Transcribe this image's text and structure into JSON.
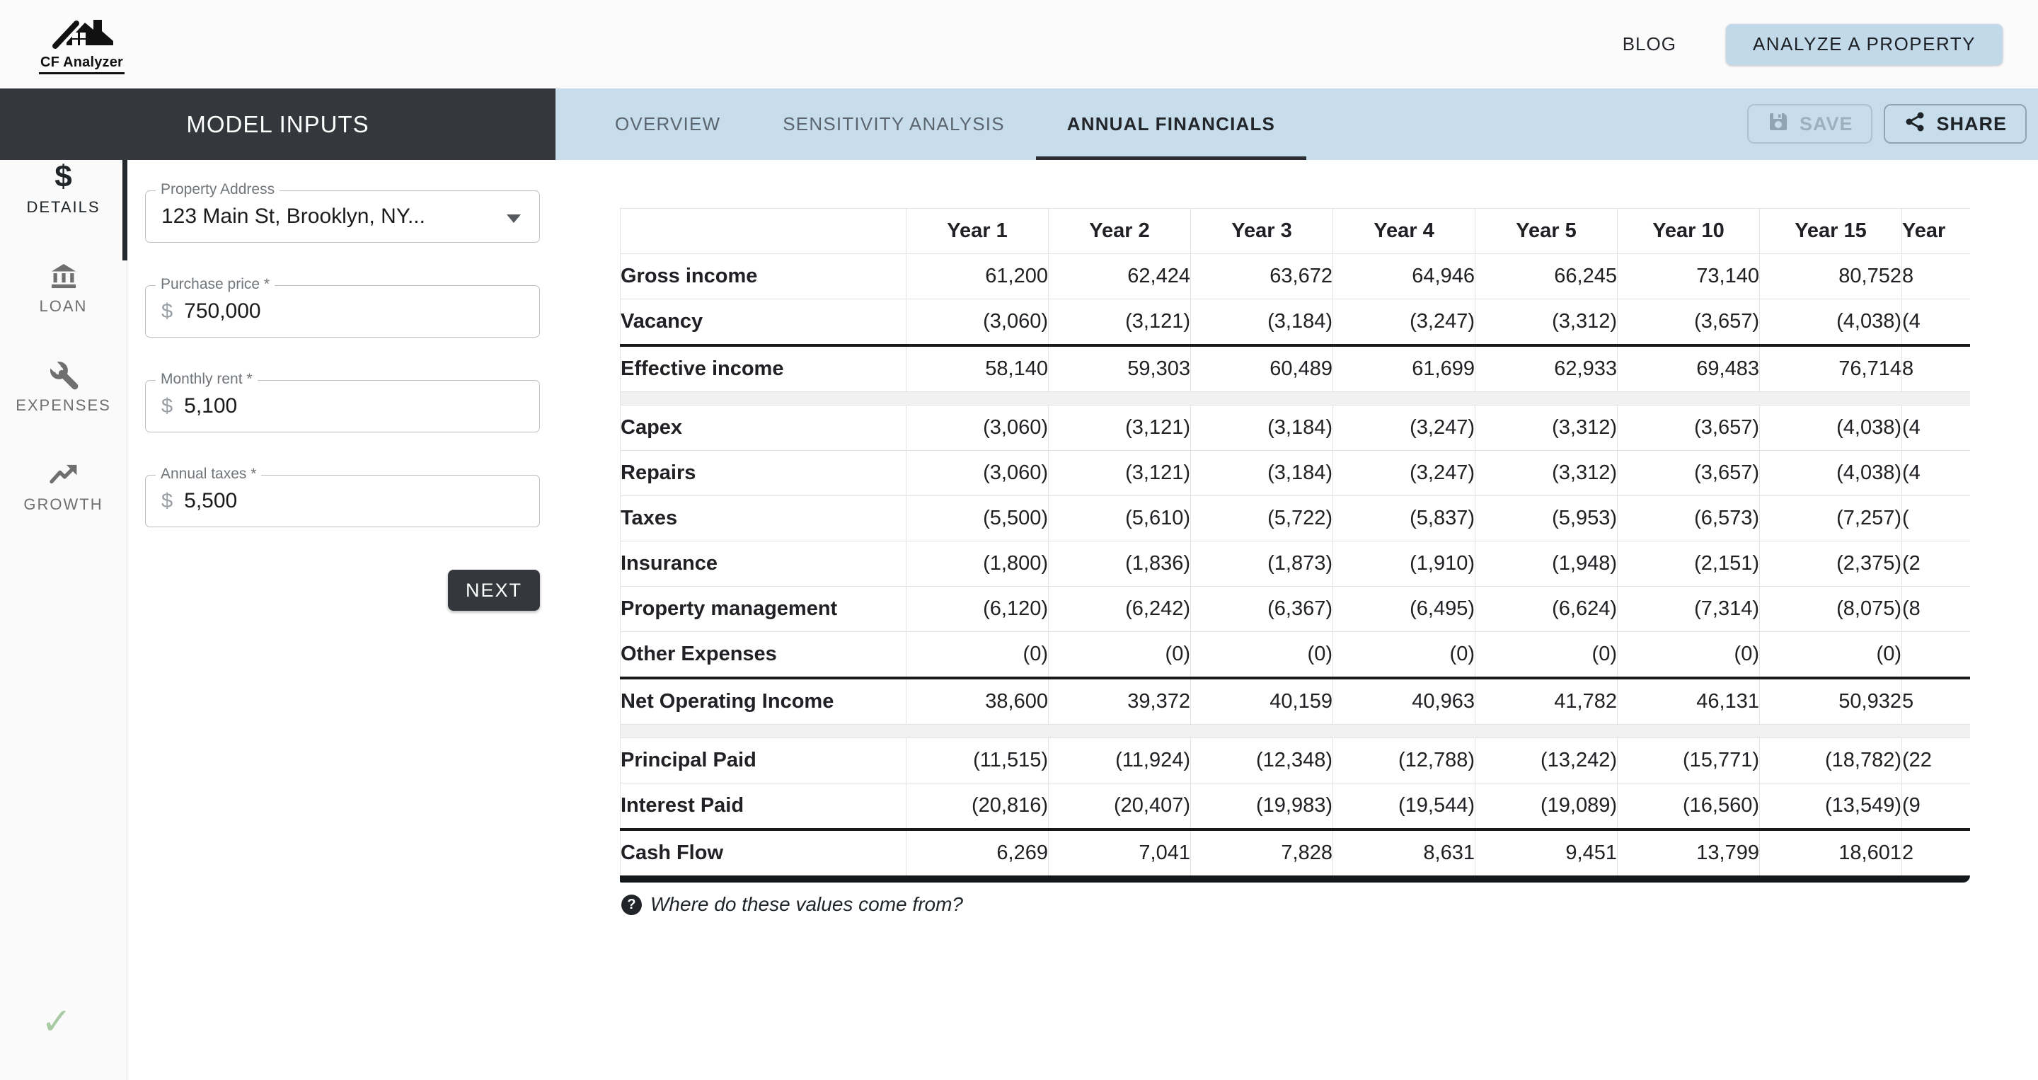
{
  "header": {
    "logo_text": "CF Analyzer",
    "blog": "BLOG",
    "analyze": "ANALYZE A PROPERTY"
  },
  "toolbar": {
    "panel_title": "MODEL INPUTS",
    "tabs": [
      {
        "label": "OVERVIEW",
        "active": false
      },
      {
        "label": "SENSITIVITY ANALYSIS",
        "active": false
      },
      {
        "label": "ANNUAL FINANCIALS",
        "active": true
      }
    ],
    "save_label": "SAVE",
    "save_disabled": true,
    "share_label": "SHARE"
  },
  "sidebar": {
    "items": [
      {
        "label": "DETAILS",
        "icon": "dollar-icon",
        "active": true
      },
      {
        "label": "LOAN",
        "icon": "bank-icon",
        "active": false
      },
      {
        "label": "EXPENSES",
        "icon": "wrench-icon",
        "active": false
      },
      {
        "label": "GROWTH",
        "icon": "trending-up-icon",
        "active": false
      }
    ],
    "status_check": "✓"
  },
  "form": {
    "fields": [
      {
        "label": "Property Address",
        "value": "123 Main St, Brooklyn, NY...",
        "type": "select"
      },
      {
        "label": "Purchase price *",
        "prefix": "$",
        "value": "750,000",
        "type": "money"
      },
      {
        "label": "Monthly rent *",
        "prefix": "$",
        "value": "5,100",
        "type": "money"
      },
      {
        "label": "Annual taxes *",
        "prefix": "$",
        "value": "5,500",
        "type": "money"
      }
    ],
    "next_label": "NEXT"
  },
  "table": {
    "columns": [
      "",
      "Year 1",
      "Year 2",
      "Year 3",
      "Year 4",
      "Year 5",
      "Year 10",
      "Year 15",
      "Year"
    ],
    "last_column_clipped": true,
    "rows": [
      {
        "type": "data",
        "label": "Gross income",
        "values": [
          "61,200",
          "62,424",
          "63,672",
          "64,946",
          "66,245",
          "73,140",
          "80,752",
          "8"
        ]
      },
      {
        "type": "data",
        "label": "Vacancy",
        "values": [
          "(3,060)",
          "(3,121)",
          "(3,184)",
          "(3,247)",
          "(3,312)",
          "(3,657)",
          "(4,038)",
          "(4"
        ]
      },
      {
        "type": "data",
        "label": "Effective income",
        "strong_top": true,
        "values": [
          "58,140",
          "59,303",
          "60,489",
          "61,699",
          "62,933",
          "69,483",
          "76,714",
          "8"
        ]
      },
      {
        "type": "spacer"
      },
      {
        "type": "data",
        "label": "Capex",
        "values": [
          "(3,060)",
          "(3,121)",
          "(3,184)",
          "(3,247)",
          "(3,312)",
          "(3,657)",
          "(4,038)",
          "(4"
        ]
      },
      {
        "type": "data",
        "label": "Repairs",
        "values": [
          "(3,060)",
          "(3,121)",
          "(3,184)",
          "(3,247)",
          "(3,312)",
          "(3,657)",
          "(4,038)",
          "(4"
        ]
      },
      {
        "type": "data",
        "label": "Taxes",
        "values": [
          "(5,500)",
          "(5,610)",
          "(5,722)",
          "(5,837)",
          "(5,953)",
          "(6,573)",
          "(7,257)",
          "("
        ]
      },
      {
        "type": "data",
        "label": "Insurance",
        "values": [
          "(1,800)",
          "(1,836)",
          "(1,873)",
          "(1,910)",
          "(1,948)",
          "(2,151)",
          "(2,375)",
          "(2"
        ]
      },
      {
        "type": "data",
        "label": "Property management",
        "values": [
          "(6,120)",
          "(6,242)",
          "(6,367)",
          "(6,495)",
          "(6,624)",
          "(7,314)",
          "(8,075)",
          "(8"
        ]
      },
      {
        "type": "data",
        "label": "Other Expenses",
        "values": [
          "(0)",
          "(0)",
          "(0)",
          "(0)",
          "(0)",
          "(0)",
          "(0)",
          ""
        ]
      },
      {
        "type": "data",
        "label": "Net Operating Income",
        "strong_top": true,
        "values": [
          "38,600",
          "39,372",
          "40,159",
          "40,963",
          "41,782",
          "46,131",
          "50,932",
          "5"
        ]
      },
      {
        "type": "spacer"
      },
      {
        "type": "data",
        "label": "Principal Paid",
        "values": [
          "(11,515)",
          "(11,924)",
          "(12,348)",
          "(12,788)",
          "(13,242)",
          "(15,771)",
          "(18,782)",
          "(22"
        ]
      },
      {
        "type": "data",
        "label": "Interest Paid",
        "values": [
          "(20,816)",
          "(20,407)",
          "(19,983)",
          "(19,544)",
          "(19,089)",
          "(16,560)",
          "(13,549)",
          "(9"
        ]
      },
      {
        "type": "data",
        "label": "Cash Flow",
        "strong_top": true,
        "values": [
          "6,269",
          "7,041",
          "7,828",
          "8,631",
          "9,451",
          "13,799",
          "18,601",
          "2"
        ]
      }
    ],
    "footnote": "Where do these values come from?",
    "footnote_icon": "?"
  },
  "colors": {
    "dark_bar": "#34373b",
    "tab_bar_bg": "#c7ddeb",
    "analyze_btn_bg": "#c2d9ea",
    "table_border": "#e3e3e3",
    "strong_rule": "#17191b",
    "success_check": "#a8caa4"
  }
}
